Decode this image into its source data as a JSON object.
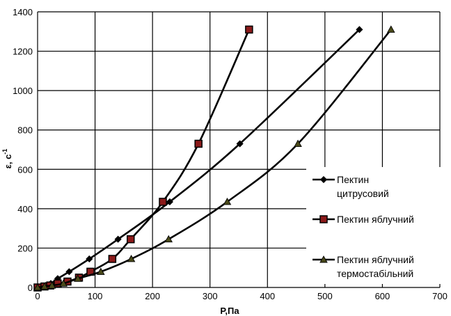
{
  "chart_data": {
    "type": "line",
    "xlabel": "P,Па",
    "ylabel": "ε, с",
    "ylabel_sup": "-1",
    "xlim": [
      0,
      700
    ],
    "ylim": [
      0,
      1400
    ],
    "xticks": [
      "0",
      "100",
      "200",
      "300",
      "400",
      "500",
      "600",
      "700"
    ],
    "yticks": [
      "0",
      "200",
      "400",
      "600",
      "800",
      "1000",
      "1200",
      "1400"
    ],
    "grid": true,
    "legend_position": "right",
    "series": [
      {
        "name_lines": [
          "Пектин",
          "цитрусовий"
        ],
        "marker": "diamond",
        "marker_color": "#000000",
        "points": [
          [
            0,
            0
          ],
          [
            8,
            5
          ],
          [
            14,
            10
          ],
          [
            23,
            20
          ],
          [
            35,
            45
          ],
          [
            55,
            80
          ],
          [
            90,
            145
          ],
          [
            140,
            245
          ],
          [
            230,
            435
          ],
          [
            352,
            730
          ],
          [
            560,
            1310
          ]
        ]
      },
      {
        "name_lines": [
          "Пектин яблучний"
        ],
        "marker": "square",
        "marker_color": "#8b1a1a",
        "points": [
          [
            0,
            0
          ],
          [
            12,
            5
          ],
          [
            22,
            10
          ],
          [
            35,
            20
          ],
          [
            52,
            30
          ],
          [
            72,
            50
          ],
          [
            92,
            80
          ],
          [
            130,
            145
          ],
          [
            162,
            245
          ],
          [
            218,
            435
          ],
          [
            280,
            730
          ],
          [
            368,
            1310
          ]
        ]
      },
      {
        "name_lines": [
          "Пектин яблучний",
          "термостабільний"
        ],
        "marker": "triangle",
        "marker_color": "#4a4a1a",
        "points": [
          [
            0,
            0
          ],
          [
            12,
            5
          ],
          [
            25,
            10
          ],
          [
            45,
            20
          ],
          [
            70,
            45
          ],
          [
            110,
            80
          ],
          [
            163,
            145
          ],
          [
            228,
            245
          ],
          [
            330,
            435
          ],
          [
            453,
            730
          ],
          [
            615,
            1310
          ]
        ]
      }
    ]
  }
}
